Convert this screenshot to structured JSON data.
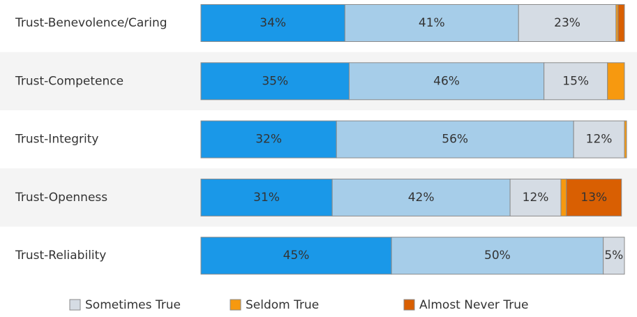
{
  "chart_data": {
    "type": "stacked-bar",
    "orientation": "horizontal",
    "categories": [
      "Trust-Benevolence/Caring",
      "Trust-Competence",
      "Trust-Integrity",
      "Trust-Openness",
      "Trust-Reliability"
    ],
    "xlim": [
      0,
      100
    ],
    "series": [
      {
        "color": "#1a98e8",
        "values": [
          34,
          35,
          32,
          31,
          45
        ],
        "value_labels": [
          "34%",
          "35%",
          "32%",
          "31%",
          "45%"
        ]
      },
      {
        "color": "#a6cde9",
        "values": [
          41,
          46,
          56,
          42,
          50
        ],
        "value_labels": [
          "41%",
          "46%",
          "56%",
          "42%",
          "50%"
        ]
      },
      {
        "name": "Sometimes True",
        "color": "#d5dce4",
        "values": [
          23,
          15,
          12,
          12,
          5
        ],
        "value_labels": [
          "23%",
          "15%",
          "12%",
          "12%",
          "5%"
        ]
      },
      {
        "name": "Seldom True",
        "color": "#f7990f",
        "values": [
          0.5,
          4,
          0.5,
          1.3,
          0
        ],
        "value_labels": [
          null,
          null,
          null,
          null,
          null
        ]
      },
      {
        "name": "Almost Never True",
        "color": "#d95f02",
        "values": [
          1.5,
          0,
          0,
          13,
          0
        ],
        "value_labels": [
          null,
          null,
          null,
          "13%",
          null
        ]
      }
    ]
  }
}
